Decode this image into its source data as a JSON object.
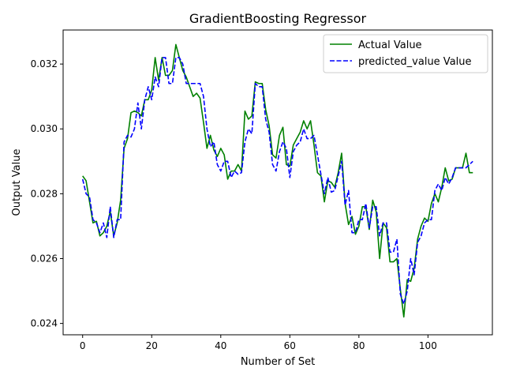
{
  "chart_data": {
    "type": "line",
    "title": "GradientBoosting Regressor",
    "xlabel": "Number of Set",
    "ylabel": "Output Value",
    "xlim": [
      -5.65,
      118.65
    ],
    "ylim": [
      0.02365,
      0.03305
    ],
    "xticks": [
      0,
      20,
      40,
      60,
      80,
      100
    ],
    "xtick_labels": [
      "0",
      "20",
      "40",
      "60",
      "80",
      "100"
    ],
    "yticks": [
      0.024,
      0.026,
      0.028,
      0.03,
      0.032
    ],
    "ytick_labels": [
      "0.024",
      "0.026",
      "0.028",
      "0.030",
      "0.032"
    ],
    "grid": false,
    "legend_position": "top-right",
    "series": [
      {
        "name": "Actual Value",
        "color": "#008000",
        "linestyle": "solid",
        "x": [
          0,
          1,
          2,
          3,
          4,
          5,
          6,
          7,
          8,
          9,
          10,
          11,
          12,
          13,
          14,
          15,
          16,
          17,
          18,
          19,
          20,
          21,
          22,
          23,
          24,
          25,
          26,
          27,
          28,
          29,
          30,
          31,
          32,
          33,
          34,
          35,
          36,
          37,
          38,
          39,
          40,
          41,
          42,
          43,
          44,
          45,
          46,
          47,
          48,
          49,
          50,
          51,
          52,
          53,
          54,
          55,
          56,
          57,
          58,
          59,
          60,
          61,
          62,
          63,
          64,
          65,
          66,
          67,
          68,
          69,
          70,
          71,
          72,
          73,
          74,
          75,
          76,
          77,
          78,
          79,
          80,
          81,
          82,
          83,
          84,
          85,
          86,
          87,
          88,
          89,
          90,
          91,
          92,
          93,
          94,
          95,
          96,
          97,
          98,
          99,
          100,
          101,
          102,
          103,
          104,
          105,
          106,
          107,
          108,
          109,
          110,
          111,
          112,
          113
        ],
        "values": [
          0.02855,
          0.0284,
          0.02775,
          0.0271,
          0.02715,
          0.0267,
          0.0268,
          0.027,
          0.02745,
          0.0267,
          0.0271,
          0.0278,
          0.0294,
          0.0297,
          0.0305,
          0.03055,
          0.0305,
          0.0304,
          0.0309,
          0.0309,
          0.0312,
          0.0322,
          0.0315,
          0.0322,
          0.03165,
          0.03165,
          0.0318,
          0.0326,
          0.0322,
          0.0318,
          0.0316,
          0.0313,
          0.031,
          0.0311,
          0.03095,
          0.0302,
          0.0294,
          0.0298,
          0.02935,
          0.02915,
          0.0294,
          0.0292,
          0.02845,
          0.0287,
          0.0287,
          0.0289,
          0.0287,
          0.03055,
          0.0303,
          0.0304,
          0.03145,
          0.0314,
          0.0314,
          0.0306,
          0.0301,
          0.0292,
          0.0291,
          0.0298,
          0.03005,
          0.0289,
          0.02885,
          0.0295,
          0.0297,
          0.0299,
          0.03025,
          0.03,
          0.03025,
          0.0295,
          0.02865,
          0.02855,
          0.02775,
          0.0284,
          0.02835,
          0.0282,
          0.02865,
          0.02925,
          0.0277,
          0.02705,
          0.0273,
          0.02675,
          0.027,
          0.0276,
          0.0276,
          0.0269,
          0.0278,
          0.02745,
          0.026,
          0.0271,
          0.02695,
          0.0259,
          0.0259,
          0.026,
          0.02505,
          0.0242,
          0.02535,
          0.0253,
          0.0257,
          0.0266,
          0.027,
          0.02725,
          0.02715,
          0.0277,
          0.028,
          0.02775,
          0.0282,
          0.0288,
          0.0284,
          0.02845,
          0.0288,
          0.0288,
          0.0288,
          0.02925,
          0.02865,
          0.02865
        ]
      },
      {
        "name": "predicted_value Value",
        "color": "#0000ff",
        "linestyle": "dashed",
        "x": [
          0,
          1,
          2,
          3,
          4,
          5,
          6,
          7,
          8,
          9,
          10,
          11,
          12,
          13,
          14,
          15,
          16,
          17,
          18,
          19,
          20,
          21,
          22,
          23,
          24,
          25,
          26,
          27,
          28,
          29,
          30,
          31,
          32,
          33,
          34,
          35,
          36,
          37,
          38,
          39,
          40,
          41,
          42,
          43,
          44,
          45,
          46,
          47,
          48,
          49,
          50,
          51,
          52,
          53,
          54,
          55,
          56,
          57,
          58,
          59,
          60,
          61,
          62,
          63,
          64,
          65,
          66,
          67,
          68,
          69,
          70,
          71,
          72,
          73,
          74,
          75,
          76,
          77,
          78,
          79,
          80,
          81,
          82,
          83,
          84,
          85,
          86,
          87,
          88,
          89,
          90,
          91,
          92,
          93,
          94,
          95,
          96,
          97,
          98,
          99,
          100,
          101,
          102,
          103,
          104,
          105,
          106,
          107,
          108,
          109,
          110,
          111,
          112,
          113
        ],
        "values": [
          0.02845,
          0.028,
          0.0279,
          0.0272,
          0.0271,
          0.0268,
          0.0271,
          0.02665,
          0.0276,
          0.02665,
          0.0272,
          0.0272,
          0.0296,
          0.0298,
          0.02975,
          0.03,
          0.0308,
          0.03,
          0.0309,
          0.0313,
          0.0309,
          0.0316,
          0.0313,
          0.0322,
          0.0322,
          0.0314,
          0.0314,
          0.0322,
          0.0322,
          0.032,
          0.0314,
          0.0314,
          0.0314,
          0.0314,
          0.0314,
          0.031,
          0.03,
          0.02945,
          0.0296,
          0.0289,
          0.0287,
          0.029,
          0.029,
          0.0285,
          0.0287,
          0.0286,
          0.02865,
          0.0296,
          0.03,
          0.02985,
          0.0314,
          0.0313,
          0.0313,
          0.0303,
          0.0299,
          0.0289,
          0.0287,
          0.0293,
          0.0296,
          0.0294,
          0.0285,
          0.0293,
          0.0295,
          0.0296,
          0.03,
          0.0297,
          0.0297,
          0.0298,
          0.0292,
          0.0286,
          0.028,
          0.0285,
          0.02805,
          0.0281,
          0.02855,
          0.029,
          0.02765,
          0.0281,
          0.0268,
          0.0268,
          0.0272,
          0.0272,
          0.0277,
          0.02695,
          0.0276,
          0.0276,
          0.0267,
          0.0271,
          0.0271,
          0.0262,
          0.0262,
          0.0266,
          0.0249,
          0.0246,
          0.025,
          0.026,
          0.0255,
          0.0265,
          0.0267,
          0.0271,
          0.0272,
          0.0272,
          0.0281,
          0.0283,
          0.0281,
          0.0285,
          0.0283,
          0.0285,
          0.0288,
          0.0288,
          0.0288,
          0.0288,
          0.0289,
          0.029
        ]
      }
    ]
  }
}
